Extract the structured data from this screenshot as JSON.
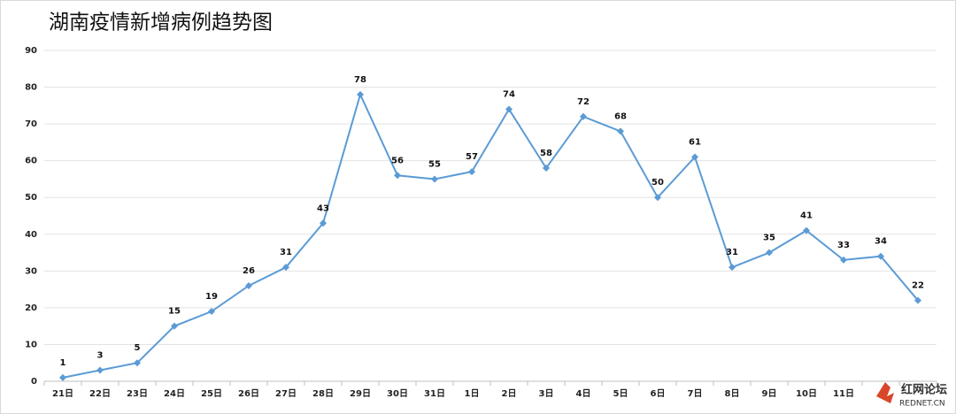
{
  "chart_data": {
    "type": "line",
    "title": "湖南疫情新增病例趋势图",
    "categories": [
      "21日",
      "22日",
      "23日",
      "24日",
      "25日",
      "26日",
      "27日",
      "28日",
      "29日",
      "30日",
      "31日",
      "1日",
      "2日",
      "3日",
      "4日",
      "5日",
      "6日",
      "7日",
      "8日",
      "9日",
      "10日",
      "11日",
      null,
      null
    ],
    "series": [
      {
        "name": "新增病例",
        "color": "#5b9bd5",
        "values": [
          1,
          3,
          5,
          15,
          19,
          26,
          31,
          43,
          78,
          56,
          55,
          57,
          74,
          58,
          72,
          68,
          50,
          61,
          31,
          35,
          41,
          33,
          34,
          22
        ]
      }
    ],
    "ylim": [
      0,
      90
    ],
    "yticks": [
      0,
      10,
      20,
      30,
      40,
      50,
      60,
      70,
      80,
      90
    ],
    "grid": true,
    "watermark": {
      "title": "红网论坛",
      "subtitle": "REDNET.CN"
    }
  }
}
